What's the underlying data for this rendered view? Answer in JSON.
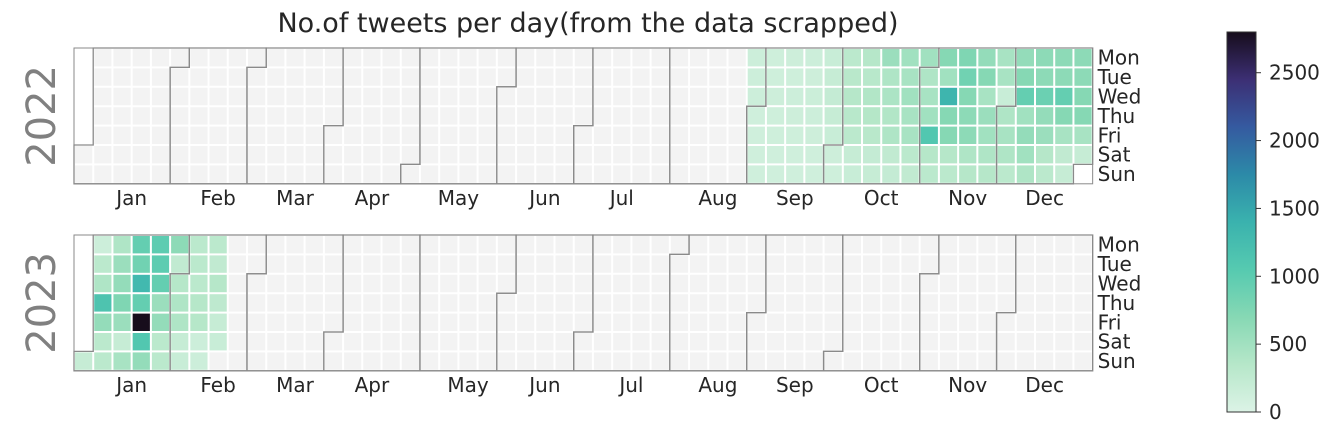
{
  "chart_data": {
    "type": "heatmap",
    "title": "No.of tweets per day(from the data scrapped)",
    "weekday_labels": [
      "Mon",
      "Tue",
      "Wed",
      "Thu",
      "Fri",
      "Sat",
      "Sun"
    ],
    "month_labels": [
      "Jan",
      "Feb",
      "Mar",
      "Apr",
      "May",
      "Jun",
      "Jul",
      "Aug",
      "Sep",
      "Oct",
      "Nov",
      "Dec"
    ],
    "colorbar": {
      "min": 0,
      "max": 2800,
      "ticks": [
        0,
        500,
        1000,
        1500,
        2000,
        2500
      ]
    },
    "colors": {
      "empty_cell": "#f3f3f3",
      "cell_border": "#ffffff",
      "month_border": "#8a8a8a",
      "year_label": "#808080",
      "scale": [
        "#dcf3e6",
        "#b6e7c9",
        "#86d8b4",
        "#56cab0",
        "#3ab2ae",
        "#2c8aa8",
        "#355aa0",
        "#3c2f74",
        "#170d1c"
      ]
    },
    "years": [
      {
        "year": "2022",
        "values": {
          "2022-08-29": 150,
          "2022-08-30": 150,
          "2022-08-31": 150,
          "2022-09-01": 120,
          "2022-09-02": 120,
          "2022-09-03": 120,
          "2022-09-04": 120,
          "2022-09-05": 130,
          "2022-09-06": 130,
          "2022-09-07": 140,
          "2022-09-08": 130,
          "2022-09-09": 130,
          "2022-09-10": 120,
          "2022-09-11": 120,
          "2022-09-12": 140,
          "2022-09-13": 130,
          "2022-09-14": 150,
          "2022-09-15": 140,
          "2022-09-16": 130,
          "2022-09-17": 120,
          "2022-09-18": 120,
          "2022-09-19": 150,
          "2022-09-20": 140,
          "2022-09-21": 160,
          "2022-09-22": 150,
          "2022-09-23": 140,
          "2022-09-24": 120,
          "2022-09-25": 120,
          "2022-09-26": 180,
          "2022-09-27": 200,
          "2022-09-28": 220,
          "2022-09-29": 200,
          "2022-09-30": 180,
          "2022-10-01": 140,
          "2022-10-02": 130,
          "2022-10-03": 300,
          "2022-10-04": 320,
          "2022-10-05": 350,
          "2022-10-06": 330,
          "2022-10-07": 300,
          "2022-10-08": 200,
          "2022-10-09": 180,
          "2022-10-10": 350,
          "2022-10-11": 330,
          "2022-10-12": 380,
          "2022-10-13": 360,
          "2022-10-14": 320,
          "2022-10-15": 220,
          "2022-10-16": 200,
          "2022-10-17": 550,
          "2022-10-18": 400,
          "2022-10-19": 420,
          "2022-10-20": 380,
          "2022-10-21": 400,
          "2022-10-22": 250,
          "2022-10-23": 220,
          "2022-10-24": 500,
          "2022-10-25": 450,
          "2022-10-26": 500,
          "2022-10-27": 450,
          "2022-10-28": 450,
          "2022-10-29": 300,
          "2022-10-30": 250,
          "2022-10-31": 500,
          "2022-11-01": 400,
          "2022-11-02": 450,
          "2022-11-03": 500,
          "2022-11-04": 1100,
          "2022-11-05": 350,
          "2022-11-06": 300,
          "2022-11-07": 700,
          "2022-11-08": 500,
          "2022-11-09": 1350,
          "2022-11-10": 700,
          "2022-11-11": 700,
          "2022-11-12": 350,
          "2022-11-13": 300,
          "2022-11-14": 750,
          "2022-11-15": 850,
          "2022-11-16": 700,
          "2022-11-17": 650,
          "2022-11-18": 650,
          "2022-11-19": 400,
          "2022-11-20": 350,
          "2022-11-21": 600,
          "2022-11-22": 700,
          "2022-11-23": 450,
          "2022-11-24": 550,
          "2022-11-25": 500,
          "2022-11-26": 400,
          "2022-11-27": 350,
          "2022-11-28": 450,
          "2022-11-29": 450,
          "2022-11-30": 180,
          "2022-12-01": 400,
          "2022-12-02": 450,
          "2022-12-03": 400,
          "2022-12-04": 300,
          "2022-12-05": 600,
          "2022-12-06": 700,
          "2022-12-07": 950,
          "2022-12-08": 500,
          "2022-12-09": 600,
          "2022-12-10": 500,
          "2022-12-11": 400,
          "2022-12-12": 650,
          "2022-12-13": 650,
          "2022-12-14": 900,
          "2022-12-15": 600,
          "2022-12-16": 550,
          "2022-12-17": 350,
          "2022-12-18": 300,
          "2022-12-19": 650,
          "2022-12-20": 650,
          "2022-12-21": 950,
          "2022-12-22": 700,
          "2022-12-23": 450,
          "2022-12-24": 250,
          "2022-12-25": 200,
          "2022-12-26": 650,
          "2022-12-27": 650,
          "2022-12-28": 700,
          "2022-12-29": 700,
          "2022-12-30": 450,
          "2022-12-31": 200
        }
      },
      {
        "year": "2023",
        "values": {
          "2023-01-01": 200,
          "2023-01-02": 150,
          "2023-01-03": 300,
          "2023-01-04": 400,
          "2023-01-05": 1150,
          "2023-01-06": 600,
          "2023-01-07": 300,
          "2023-01-08": 300,
          "2023-01-09": 400,
          "2023-01-10": 550,
          "2023-01-11": 600,
          "2023-01-12": 750,
          "2023-01-13": 550,
          "2023-01-14": 200,
          "2023-01-15": 450,
          "2023-01-16": 950,
          "2023-01-17": 850,
          "2023-01-18": 1300,
          "2023-01-19": 950,
          "2023-01-20": 2800,
          "2023-01-21": 1100,
          "2023-01-22": 600,
          "2023-01-23": 1000,
          "2023-01-24": 1000,
          "2023-01-25": 950,
          "2023-01-26": 550,
          "2023-01-27": 600,
          "2023-01-28": 300,
          "2023-01-29": 300,
          "2023-01-30": 650,
          "2023-01-31": 250,
          "2023-02-01": 350,
          "2023-02-02": 400,
          "2023-02-03": 400,
          "2023-02-04": 200,
          "2023-02-05": 180,
          "2023-02-06": 300,
          "2023-02-07": 300,
          "2023-02-08": 300,
          "2023-02-09": 350,
          "2023-02-10": 350,
          "2023-02-11": 150,
          "2023-02-12": 150,
          "2023-02-13": 300,
          "2023-02-14": 250,
          "2023-02-15": 350,
          "2023-02-16": 280,
          "2023-02-17": 200,
          "2023-02-18": 180
        }
      }
    ]
  }
}
